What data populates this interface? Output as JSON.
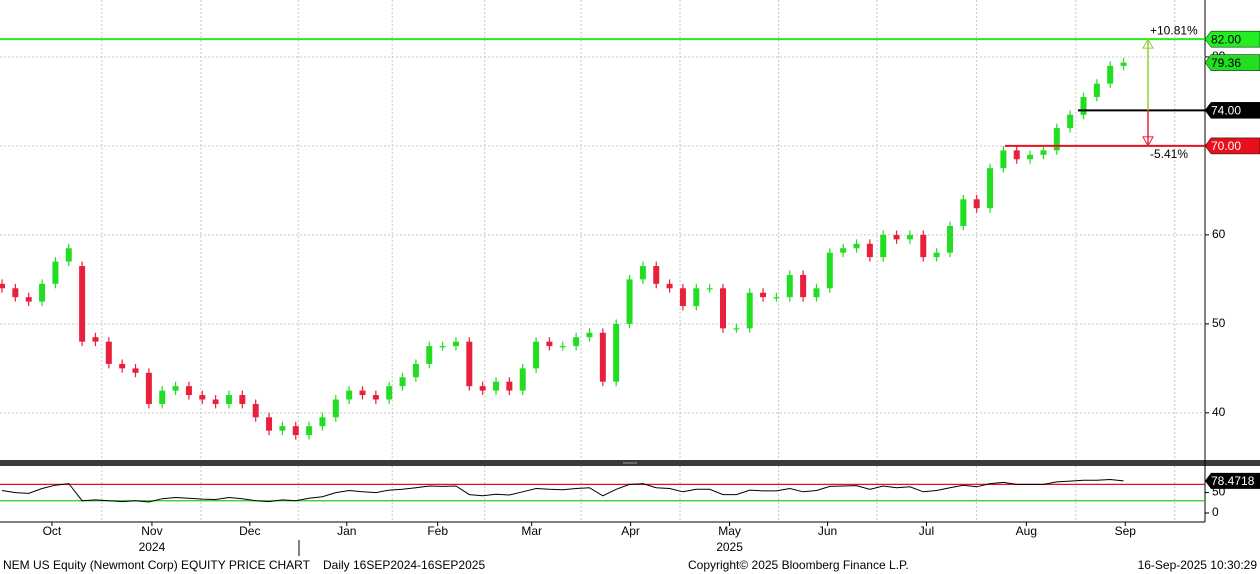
{
  "chart_data": {
    "type": "candlestick",
    "title": "NEM US Equity (Newmont Corp) EQUITY PRICE CHART",
    "subtitle": "Daily 16SEP2024-16SEP2025",
    "open": [
      54.5,
      54,
      53,
      52.5,
      54.5,
      57,
      56.5,
      48.5,
      48,
      45.5,
      45,
      44.5,
      41,
      42.5,
      43,
      42,
      41.5,
      41,
      42,
      41,
      39.5,
      38,
      38.5,
      37.5,
      38.5,
      39.5,
      41.5,
      42.5,
      42,
      41.5,
      43,
      44,
      45.5,
      47.5,
      47.5,
      48,
      43,
      42.5,
      43.5,
      42.5,
      45,
      48,
      47.5,
      47.5,
      48.5,
      49,
      43.5,
      50,
      55,
      56.5,
      54.5,
      54,
      52,
      54,
      54,
      49.5,
      49.5,
      53.5,
      53,
      53,
      55.5,
      53,
      54,
      58,
      58.5,
      59,
      57.5,
      60,
      59.5,
      60,
      57.5,
      58,
      61,
      64,
      63,
      67.5,
      69.5,
      68.5,
      69,
      69.5,
      72,
      73.5,
      75.5,
      77,
      79
    ],
    "high": [
      55,
      54.5,
      53.5,
      55,
      57.5,
      59,
      57,
      49,
      48.5,
      46,
      45.5,
      45,
      43,
      43.5,
      43.5,
      42.5,
      42,
      42.5,
      42.5,
      41.5,
      40,
      39,
      39,
      39,
      40,
      42,
      43,
      43,
      42.5,
      43.5,
      44.5,
      46,
      48,
      48,
      48.5,
      48.5,
      43.5,
      44,
      44,
      45.5,
      48.5,
      48.5,
      48,
      49,
      49.5,
      49.5,
      50.5,
      55.5,
      57,
      57,
      55,
      54.5,
      54.5,
      54.5,
      54.5,
      50,
      54,
      54,
      53.5,
      56,
      56,
      54.5,
      58.5,
      59,
      59.5,
      59.5,
      60.5,
      60.5,
      60.5,
      60.5,
      58.5,
      61.5,
      64.5,
      64.5,
      68,
      70,
      70,
      69.5,
      70,
      72.5,
      74,
      76,
      77.5,
      79.5,
      79.9
    ],
    "low": [
      53.5,
      52.5,
      52,
      52,
      54,
      56.5,
      47.5,
      47.5,
      45,
      44.5,
      44,
      40.5,
      40.5,
      42,
      41.5,
      41,
      40.5,
      40.5,
      40.5,
      39,
      37.5,
      37.5,
      37,
      37,
      38,
      39,
      41,
      41.5,
      41,
      41,
      42.5,
      43.5,
      45,
      47,
      47,
      42.5,
      42,
      42,
      42,
      42,
      44.5,
      47,
      47,
      47,
      48,
      43,
      43,
      49.5,
      54.5,
      54,
      53.5,
      51.5,
      51.5,
      53.5,
      49,
      49,
      49,
      52.5,
      52.5,
      52.5,
      52.5,
      52.5,
      53.5,
      57.5,
      58,
      57,
      57,
      59,
      59,
      57,
      57,
      57.5,
      60.5,
      62.5,
      62.5,
      67,
      68,
      68,
      68.5,
      69,
      71.5,
      73,
      75,
      76.5,
      78.5
    ],
    "close": [
      54,
      53,
      52.5,
      54.5,
      57,
      58.5,
      48,
      48,
      45.5,
      45,
      44.5,
      41,
      42.5,
      43,
      42,
      41.5,
      41,
      42,
      41,
      39.5,
      38,
      38.5,
      37.5,
      38.5,
      39.5,
      41.5,
      42.5,
      42,
      41.5,
      43,
      44,
      45.5,
      47.5,
      47.5,
      48,
      43,
      42.5,
      43.5,
      42.5,
      45,
      48,
      47.5,
      47.5,
      48.5,
      49,
      43.5,
      50,
      55,
      56.5,
      54.5,
      54,
      52,
      54,
      54,
      49.5,
      49.5,
      53.5,
      53,
      53,
      55.5,
      53,
      54,
      58,
      58.5,
      59,
      57.5,
      60,
      59.5,
      60,
      57.5,
      58,
      61,
      64,
      63,
      67.5,
      69.5,
      68.5,
      69,
      69.5,
      72,
      73.5,
      75.5,
      77,
      79,
      79.36
    ],
    "up_color": "#22dd22",
    "down_color": "#e8203c",
    "xlim": [
      -0.15,
      90.1
    ],
    "ylim": [
      34.7,
      86.4
    ],
    "yticks": [
      40,
      50,
      60,
      70,
      80
    ],
    "grid": true,
    "xticks": [
      {
        "value": 3.74,
        "label": "Oct"
      },
      {
        "value": 11.23,
        "label": "Nov"
      },
      {
        "value": 18.56,
        "label": "Dec"
      },
      {
        "value": 25.82,
        "label": "Jan"
      },
      {
        "value": 32.63,
        "label": "Feb"
      },
      {
        "value": 39.67,
        "label": "Mar"
      },
      {
        "value": 47.08,
        "label": "Apr"
      },
      {
        "value": 54.49,
        "label": "May"
      },
      {
        "value": 61.83,
        "label": "Jun"
      },
      {
        "value": 69.24,
        "label": "Jul"
      },
      {
        "value": 76.72,
        "label": "Aug"
      },
      {
        "value": 84.13,
        "label": "Sep"
      }
    ],
    "years": [
      {
        "value": 11.23,
        "label": "2024"
      },
      {
        "value": 54.49,
        "label": "2025"
      }
    ],
    "levels": [
      {
        "value": 82,
        "label": "82.00",
        "color": "#22ee22",
        "text_color": "#000000"
      },
      {
        "value": 74,
        "label": "74.00",
        "color": "#000000",
        "text_color": "#ffffff"
      },
      {
        "value": 70,
        "label": "70.00",
        "color": "#e8101c",
        "text_color": "#ffffff"
      }
    ],
    "annotations": [
      {
        "value": 10.81,
        "label": "+10.81%",
        "color": "#99cc33"
      },
      {
        "value": -5.41,
        "label": "-5.41%",
        "color": "#e8203c"
      }
    ],
    "rsi": {
      "values": [
        55,
        50,
        48,
        60,
        68,
        72,
        30,
        32,
        30,
        28,
        30,
        27,
        35,
        38,
        36,
        34,
        33,
        38,
        35,
        30,
        28,
        32,
        30,
        36,
        40,
        50,
        55,
        52,
        50,
        56,
        58,
        62,
        66,
        65,
        66,
        45,
        42,
        46,
        44,
        52,
        60,
        58,
        57,
        60,
        62,
        42,
        58,
        70,
        72,
        62,
        60,
        52,
        58,
        58,
        45,
        45,
        56,
        54,
        54,
        60,
        52,
        55,
        65,
        66,
        67,
        58,
        66,
        62,
        64,
        52,
        55,
        62,
        68,
        64,
        72,
        75,
        70,
        70,
        70,
        76,
        78,
        80,
        80,
        82,
        78.4718
      ],
      "ylim": [
        -22,
        115
      ],
      "yticks": [
        0,
        50
      ],
      "upper": 70,
      "lower": 30,
      "upper_color": "#e8101c",
      "lower_color": "#22cc22",
      "color": "#000000"
    },
    "copyright": "Copyright© 2025 Bloomberg Finance L.P.",
    "timestamp": "16-Sep-2025 10:30:29"
  }
}
